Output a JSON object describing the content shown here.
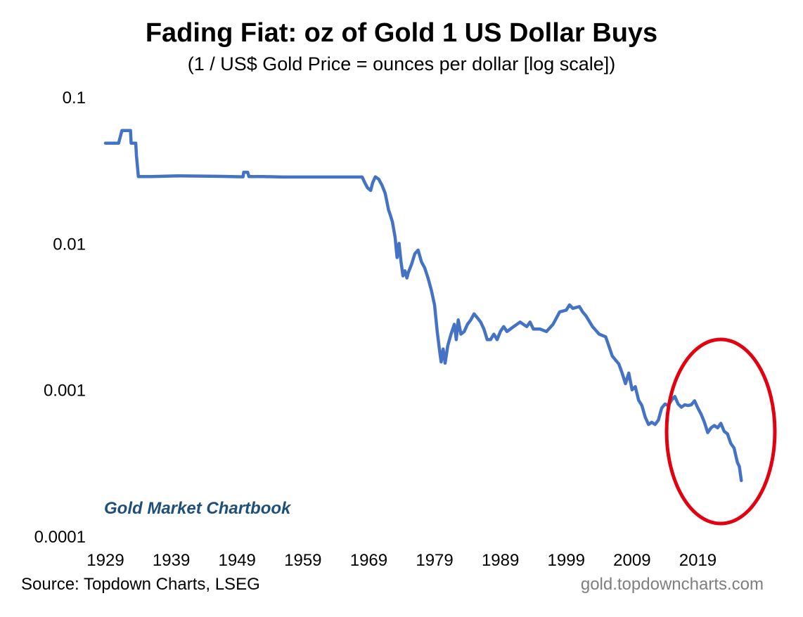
{
  "chart_data": {
    "type": "line",
    "title": "Fading Fiat: oz of Gold 1 US Dollar Buys",
    "subtitle": "(1 / US$ Gold Price = ounces per dollar [log scale])",
    "xlabel": "",
    "ylabel": "",
    "y_scale": "log",
    "ylim": [
      0.0001,
      0.1
    ],
    "xlim": [
      1929,
      2026
    ],
    "y_ticks": [
      {
        "value": 0.1,
        "label": "0.1"
      },
      {
        "value": 0.01,
        "label": "0.01"
      },
      {
        "value": 0.001,
        "label": "0.001"
      },
      {
        "value": 0.0001,
        "label": "0.0001"
      }
    ],
    "x_ticks": [
      {
        "value": 1929,
        "label": "1929"
      },
      {
        "value": 1939,
        "label": "1939"
      },
      {
        "value": 1949,
        "label": "1949"
      },
      {
        "value": 1959,
        "label": "1959"
      },
      {
        "value": 1969,
        "label": "1969"
      },
      {
        "value": 1979,
        "label": "1979"
      },
      {
        "value": 1989,
        "label": "1989"
      },
      {
        "value": 1999,
        "label": "1999"
      },
      {
        "value": 2009,
        "label": "2009"
      },
      {
        "value": 2019,
        "label": "2019"
      }
    ],
    "grid": false,
    "legend": "none",
    "line_color": "#4472c4",
    "series": [
      {
        "points": [
          [
            1929.0,
            0.0484
          ],
          [
            1930.0,
            0.0484
          ],
          [
            1931.0,
            0.0484
          ],
          [
            1931.5,
            0.059
          ],
          [
            1932.8,
            0.059
          ],
          [
            1932.9,
            0.0484
          ],
          [
            1933.6,
            0.0484
          ],
          [
            1933.7,
            0.04
          ],
          [
            1934.0,
            0.0286
          ],
          [
            1936.0,
            0.0286
          ],
          [
            1940.0,
            0.0289
          ],
          [
            1946.0,
            0.0287
          ],
          [
            1948.0,
            0.0286
          ],
          [
            1949.9,
            0.0285
          ],
          [
            1950.0,
            0.0306
          ],
          [
            1950.6,
            0.0306
          ],
          [
            1950.8,
            0.0286
          ],
          [
            1953.0,
            0.0286
          ],
          [
            1956.0,
            0.0284
          ],
          [
            1959.0,
            0.0284
          ],
          [
            1962.0,
            0.0284
          ],
          [
            1965.0,
            0.0284
          ],
          [
            1967.0,
            0.0284
          ],
          [
            1968.0,
            0.0284
          ],
          [
            1968.4,
            0.026
          ],
          [
            1968.8,
            0.024
          ],
          [
            1969.3,
            0.023
          ],
          [
            1969.6,
            0.026
          ],
          [
            1970.0,
            0.0285
          ],
          [
            1970.5,
            0.0275
          ],
          [
            1971.0,
            0.025
          ],
          [
            1971.5,
            0.022
          ],
          [
            1972.0,
            0.017
          ],
          [
            1972.3,
            0.0155
          ],
          [
            1972.6,
            0.014
          ],
          [
            1973.0,
            0.011
          ],
          [
            1973.3,
            0.008
          ],
          [
            1973.6,
            0.01
          ],
          [
            1973.9,
            0.0075
          ],
          [
            1974.2,
            0.006
          ],
          [
            1974.5,
            0.0065
          ],
          [
            1974.8,
            0.0058
          ],
          [
            1975.0,
            0.0063
          ],
          [
            1975.5,
            0.0072
          ],
          [
            1976.0,
            0.0085
          ],
          [
            1976.5,
            0.009
          ],
          [
            1977.0,
            0.0075
          ],
          [
            1977.5,
            0.0068
          ],
          [
            1978.0,
            0.0058
          ],
          [
            1978.5,
            0.0048
          ],
          [
            1979.0,
            0.0038
          ],
          [
            1979.4,
            0.0025
          ],
          [
            1979.8,
            0.0018
          ],
          [
            1980.0,
            0.00155
          ],
          [
            1980.3,
            0.0019
          ],
          [
            1980.6,
            0.00152
          ],
          [
            1981.0,
            0.002
          ],
          [
            1981.5,
            0.0024
          ],
          [
            1982.0,
            0.0028
          ],
          [
            1982.3,
            0.0022
          ],
          [
            1982.6,
            0.003
          ],
          [
            1983.0,
            0.0024
          ],
          [
            1983.5,
            0.0025
          ],
          [
            1984.0,
            0.0028
          ],
          [
            1984.5,
            0.003
          ],
          [
            1985.0,
            0.0033
          ],
          [
            1985.5,
            0.0031
          ],
          [
            1986.0,
            0.0029
          ],
          [
            1986.5,
            0.0026
          ],
          [
            1987.0,
            0.0022
          ],
          [
            1987.5,
            0.0022
          ],
          [
            1988.0,
            0.0024
          ],
          [
            1988.5,
            0.0022
          ],
          [
            1989.0,
            0.0025
          ],
          [
            1989.5,
            0.0027
          ],
          [
            1990.0,
            0.0025
          ],
          [
            1991.0,
            0.0027
          ],
          [
            1992.0,
            0.0029
          ],
          [
            1993.0,
            0.0027
          ],
          [
            1993.5,
            0.0029
          ],
          [
            1994.0,
            0.0026
          ],
          [
            1995.0,
            0.0026
          ],
          [
            1996.0,
            0.0025
          ],
          [
            1997.0,
            0.0028
          ],
          [
            1998.0,
            0.0034
          ],
          [
            1999.0,
            0.0035
          ],
          [
            1999.5,
            0.0038
          ],
          [
            2000.0,
            0.0036
          ],
          [
            2001.0,
            0.0037
          ],
          [
            2001.5,
            0.0034
          ],
          [
            2002.0,
            0.0032
          ],
          [
            2003.0,
            0.0027
          ],
          [
            2004.0,
            0.0024
          ],
          [
            2005.0,
            0.0023
          ],
          [
            2006.0,
            0.0017
          ],
          [
            2007.0,
            0.0015
          ],
          [
            2007.5,
            0.0013
          ],
          [
            2008.0,
            0.0011
          ],
          [
            2008.5,
            0.0013
          ],
          [
            2009.0,
            0.001
          ],
          [
            2009.5,
            0.00105
          ],
          [
            2010.0,
            0.00085
          ],
          [
            2010.5,
            0.00078
          ],
          [
            2011.0,
            0.00065
          ],
          [
            2011.5,
            0.00058
          ],
          [
            2012.0,
            0.0006
          ],
          [
            2012.5,
            0.00058
          ],
          [
            2013.0,
            0.00062
          ],
          [
            2013.5,
            0.00075
          ],
          [
            2014.0,
            0.0008
          ],
          [
            2014.5,
            0.00078
          ],
          [
            2015.0,
            0.00085
          ],
          [
            2015.5,
            0.0009
          ],
          [
            2016.0,
            0.0008
          ],
          [
            2016.5,
            0.00076
          ],
          [
            2017.0,
            0.00079
          ],
          [
            2017.5,
            0.00078
          ],
          [
            2018.0,
            0.00079
          ],
          [
            2018.5,
            0.00084
          ],
          [
            2019.0,
            0.00075
          ],
          [
            2019.5,
            0.00068
          ],
          [
            2020.0,
            0.0006
          ],
          [
            2020.5,
            0.00051
          ],
          [
            2021.0,
            0.00055
          ],
          [
            2021.5,
            0.00057
          ],
          [
            2022.0,
            0.00055
          ],
          [
            2022.5,
            0.00059
          ],
          [
            2023.0,
            0.00052
          ],
          [
            2023.5,
            0.0005
          ],
          [
            2024.0,
            0.00043
          ],
          [
            2024.5,
            0.0004
          ],
          [
            2025.0,
            0.00032
          ],
          [
            2025.3,
            0.0003
          ],
          [
            2025.6,
            0.00024
          ]
        ]
      }
    ],
    "annotations": [
      {
        "text": "Gold Market Chartbook",
        "color": "#1f4e79"
      }
    ],
    "highlight_ellipse_color": "#e3000f"
  },
  "footer": {
    "source": "Source: Topdown Charts, LSEG",
    "website": "gold.topdowncharts.com"
  }
}
